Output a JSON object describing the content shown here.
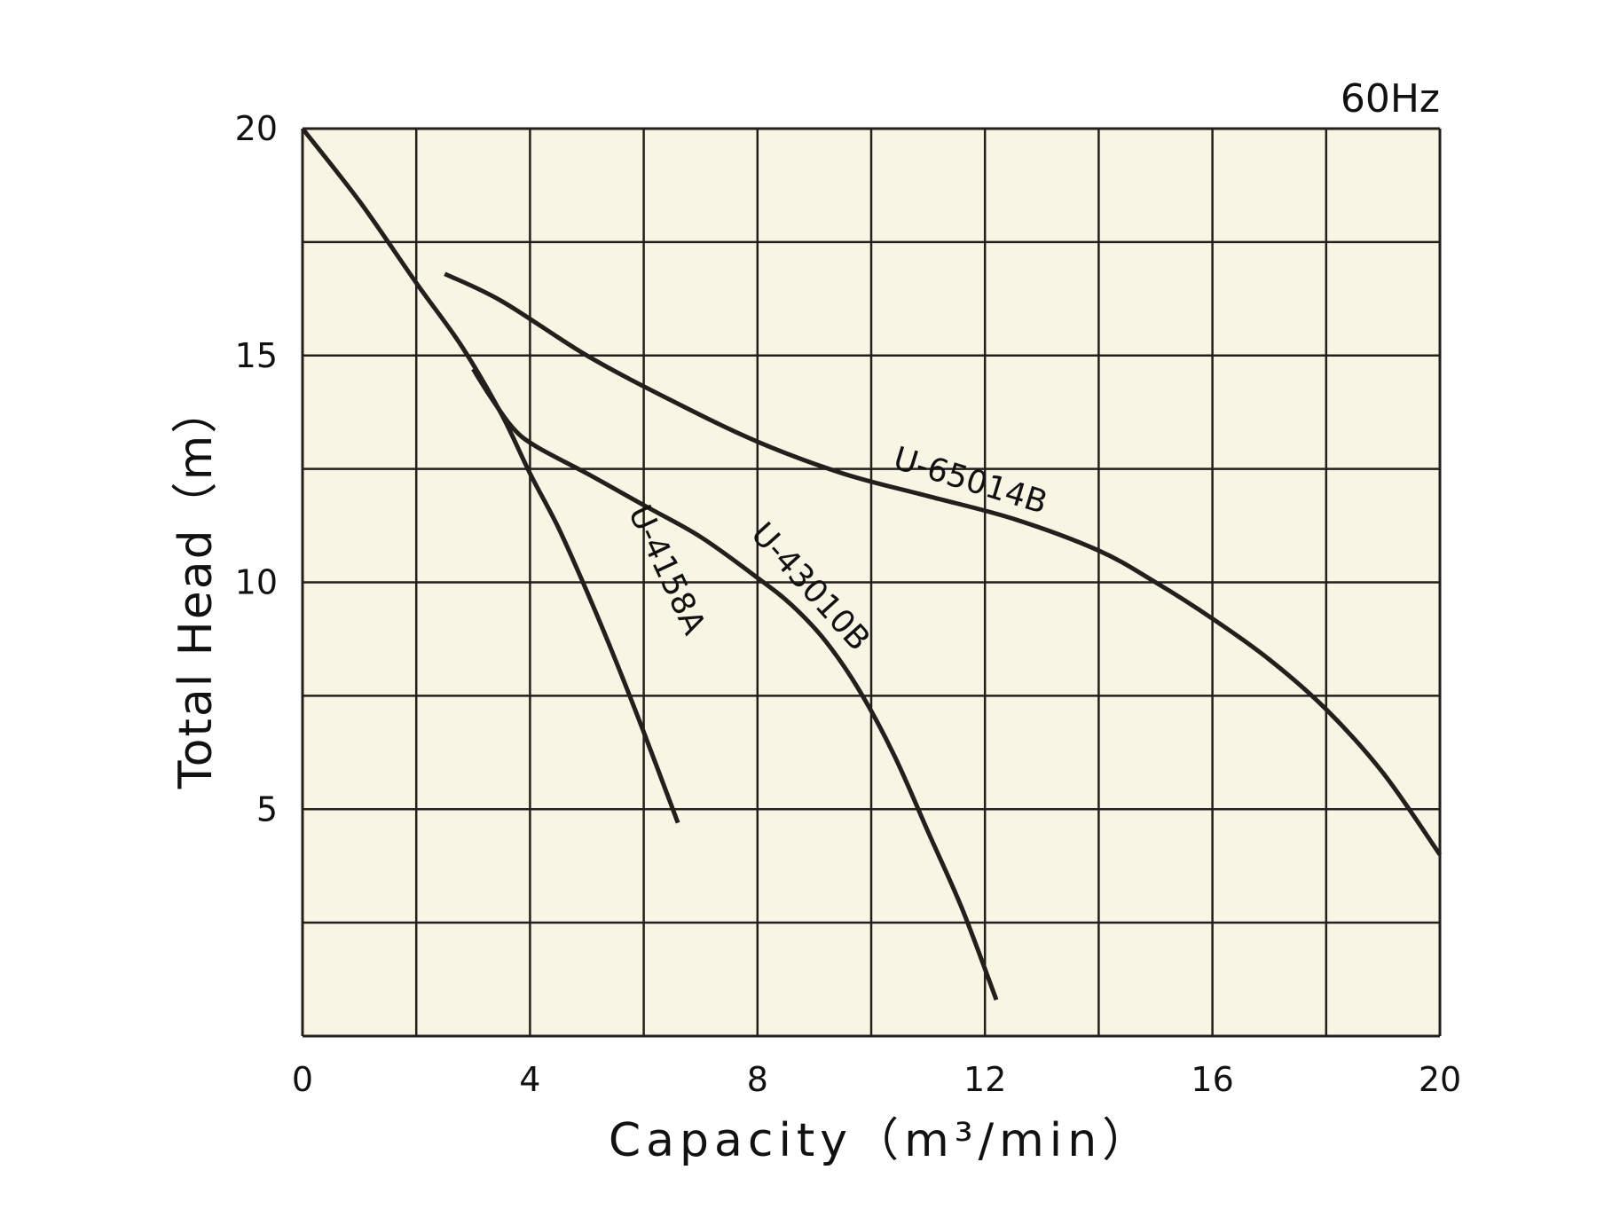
{
  "chart_data": {
    "type": "line",
    "frequency_label": "60Hz",
    "xlabel": "Capacity（m³/min）",
    "ylabel": "Total Head（m）",
    "xlim": [
      0,
      20
    ],
    "ylim": [
      0,
      20
    ],
    "x_ticks": [
      "0",
      "4",
      "8",
      "12",
      "16",
      "20"
    ],
    "y_ticks": [
      "5",
      "10",
      "15",
      "20"
    ],
    "grid": true,
    "plot_background": "#f8f5e4",
    "line_color": "#231f1c",
    "series": [
      {
        "name": "U-4158A",
        "points": [
          [
            0,
            20
          ],
          [
            1,
            18.4
          ],
          [
            2,
            16.6
          ],
          [
            2.8,
            15.2
          ],
          [
            3.5,
            13.7
          ],
          [
            4,
            12.4
          ],
          [
            4.5,
            11.2
          ],
          [
            5,
            9.8
          ],
          [
            5.5,
            8.3
          ],
          [
            6,
            6.7
          ],
          [
            6.6,
            4.7
          ]
        ]
      },
      {
        "name": "U-43010B",
        "points": [
          [
            3.0,
            14.7
          ],
          [
            3.3,
            14.1
          ],
          [
            3.7,
            13.4
          ],
          [
            4.1,
            13.0
          ],
          [
            5,
            12.4
          ],
          [
            6,
            11.7
          ],
          [
            7,
            11.0
          ],
          [
            8,
            10.1
          ],
          [
            8.6,
            9.5
          ],
          [
            9.2,
            8.7
          ],
          [
            9.8,
            7.6
          ],
          [
            10.4,
            6.2
          ],
          [
            11,
            4.5
          ],
          [
            11.6,
            2.8
          ],
          [
            12.2,
            0.8
          ]
        ]
      },
      {
        "name": "U-65014B",
        "points": [
          [
            2.5,
            16.8
          ],
          [
            3.5,
            16.2
          ],
          [
            5,
            15.0
          ],
          [
            6.5,
            14.0
          ],
          [
            8,
            13.1
          ],
          [
            9.5,
            12.4
          ],
          [
            11,
            11.9
          ],
          [
            12.5,
            11.4
          ],
          [
            14,
            10.7
          ],
          [
            15,
            10.0
          ],
          [
            16,
            9.2
          ],
          [
            17,
            8.3
          ],
          [
            18,
            7.2
          ],
          [
            19,
            5.8
          ],
          [
            20,
            4.0
          ]
        ]
      }
    ]
  }
}
